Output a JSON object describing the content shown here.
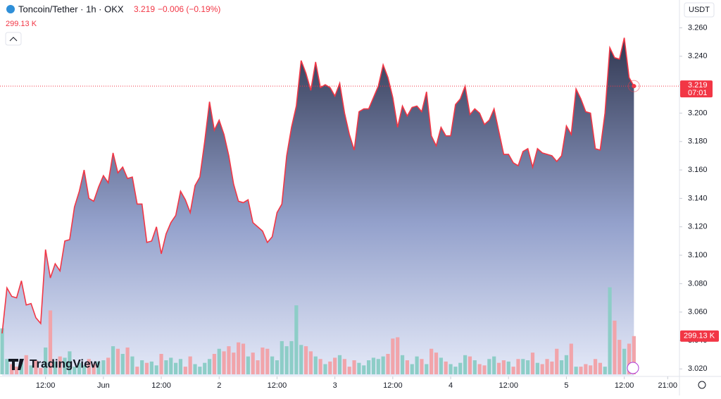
{
  "chart_data": {
    "type": "area",
    "title": "Toncoin/Tether · 1h · OKX",
    "last_price": 3.219,
    "change": "−0.006 (−0.19%)",
    "volume_label": "299.13 K",
    "currency": "USDT",
    "countdown": "07:01",
    "brand": "TradingView",
    "line_color": "#f23645",
    "up_color": "#8dcdc7",
    "down_color": "#f1a4aa",
    "values": [
      3.045,
      3.077,
      3.071,
      3.07,
      3.082,
      3.065,
      3.066,
      3.056,
      3.052,
      3.104,
      3.084,
      3.094,
      3.089,
      3.11,
      3.111,
      3.134,
      3.145,
      3.16,
      3.14,
      3.138,
      3.148,
      3.156,
      3.151,
      3.172,
      3.158,
      3.162,
      3.154,
      3.155,
      3.136,
      3.136,
      3.109,
      3.11,
      3.12,
      3.101,
      3.115,
      3.123,
      3.128,
      3.145,
      3.139,
      3.13,
      3.149,
      3.155,
      3.18,
      3.208,
      3.188,
      3.195,
      3.185,
      3.17,
      3.15,
      3.138,
      3.137,
      3.139,
      3.123,
      3.12,
      3.117,
      3.109,
      3.113,
      3.13,
      3.136,
      3.17,
      3.19,
      3.205,
      3.237,
      3.228,
      3.216,
      3.236,
      3.218,
      3.22,
      3.218,
      3.212,
      3.221,
      3.2,
      3.185,
      3.174,
      3.201,
      3.203,
      3.203,
      3.211,
      3.219,
      3.234,
      3.225,
      3.211,
      3.19,
      3.205,
      3.198,
      3.204,
      3.205,
      3.201,
      3.215,
      3.184,
      3.177,
      3.19,
      3.184,
      3.184,
      3.206,
      3.21,
      3.219,
      3.199,
      3.203,
      3.2,
      3.192,
      3.195,
      3.203,
      3.187,
      3.171,
      3.171,
      3.165,
      3.163,
      3.173,
      3.175,
      3.162,
      3.175,
      3.172,
      3.171,
      3.17,
      3.166,
      3.17,
      3.191,
      3.185,
      3.217,
      3.21,
      3.201,
      3.2,
      3.175,
      3.174,
      3.2,
      3.246,
      3.239,
      3.238,
      3.253,
      3.225,
      3.219
    ],
    "volume": [
      360,
      120,
      80,
      60,
      90,
      150,
      70,
      110,
      50,
      210,
      500,
      100,
      140,
      130,
      180,
      60,
      90,
      70,
      120,
      80,
      100,
      110,
      130,
      220,
      200,
      160,
      210,
      140,
      60,
      110,
      90,
      100,
      70,
      160,
      110,
      130,
      90,
      120,
      60,
      140,
      80,
      60,
      90,
      120,
      160,
      200,
      180,
      220,
      170,
      250,
      240,
      140,
      170,
      110,
      210,
      200,
      140,
      110,
      260,
      220,
      260,
      540,
      230,
      220,
      180,
      140,
      120,
      80,
      100,
      130,
      150,
      120,
      60,
      110,
      90,
      70,
      110,
      130,
      120,
      140,
      160,
      280,
      290,
      150,
      110,
      80,
      140,
      120,
      80,
      200,
      170,
      130,
      100,
      80,
      60,
      90,
      150,
      140,
      110,
      80,
      70,
      120,
      140,
      90,
      110,
      100,
      60,
      120,
      120,
      110,
      170,
      90,
      80,
      120,
      100,
      200,
      110,
      150,
      240,
      60,
      60,
      80,
      70,
      120,
      90,
      60,
      681,
      420,
      270,
      200,
      240,
      299.13
    ],
    "volume_lim": [
      0,
      800
    ],
    "xlim": [
      -0.44,
      140.44
    ],
    "xticks": [
      {
        "value": 9,
        "label": "12:00"
      },
      {
        "value": 21,
        "label": "Jun"
      },
      {
        "value": 33,
        "label": "12:00"
      },
      {
        "value": 45,
        "label": "2"
      },
      {
        "value": 57,
        "label": "12:00"
      },
      {
        "value": 69,
        "label": "3"
      },
      {
        "value": 81,
        "label": "12:00"
      },
      {
        "value": 93,
        "label": "4"
      },
      {
        "value": 105,
        "label": "12:00"
      },
      {
        "value": 117,
        "label": "5"
      },
      {
        "value": 129,
        "label": "12:00"
      },
      {
        "value": 138,
        "label": "21:00"
      }
    ],
    "ylim": [
      3.0152,
      3.2652
    ],
    "yticks": [
      {
        "value": 3.02,
        "label": "3.020"
      },
      {
        "value": 3.04,
        "label": "3.040"
      },
      {
        "value": 3.06,
        "label": "3.060"
      },
      {
        "value": 3.08,
        "label": "3.080"
      },
      {
        "value": 3.1,
        "label": "3.100"
      },
      {
        "value": 3.12,
        "label": "3.120"
      },
      {
        "value": 3.14,
        "label": "3.140"
      },
      {
        "value": 3.16,
        "label": "3.160"
      },
      {
        "value": 3.18,
        "label": "3.180"
      },
      {
        "value": 3.2,
        "label": "3.200"
      },
      {
        "value": 3.22,
        "label": "3.220"
      },
      {
        "value": 3.24,
        "label": "3.240"
      },
      {
        "value": 3.26,
        "label": "3.260"
      }
    ]
  }
}
